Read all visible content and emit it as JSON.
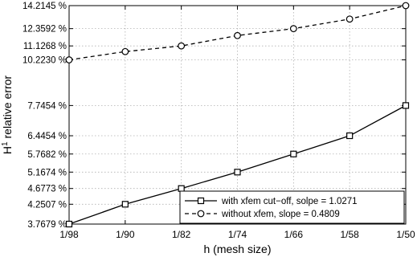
{
  "chart_data": {
    "type": "line",
    "xlabel": "h (mesh size)",
    "ylabel_main": "H",
    "ylabel_sup": "1",
    "ylabel_rest": " relative error",
    "x": [
      98,
      90,
      82,
      74,
      66,
      58,
      50
    ],
    "x_tick_labels": [
      "1/98",
      "1/90",
      "1/82",
      "1/74",
      "1/66",
      "1/58",
      "1/50"
    ],
    "y_scale": "log",
    "ylim": [
      3.7679,
      14.2145
    ],
    "y_ticks": [
      3.7679,
      4.2507,
      4.6773,
      5.1674,
      5.7682,
      6.4454,
      7.7454,
      10.223,
      11.1268,
      12.3592,
      14.2145
    ],
    "y_tick_labels": [
      "3.7679 %",
      "4.2507 %",
      "4.6773 %",
      "5.1674 %",
      "5.7682 %",
      "6.4454 %",
      "7.7454 %",
      "10.2230 %",
      "11.1268 %",
      "12.3592 %",
      "14.2145 %"
    ],
    "grid": true,
    "legend_position": "bottom-right",
    "series": [
      {
        "name": "with xfem cut−off, solpe = 1.0271",
        "marker": "square",
        "line_style": "solid",
        "values": [
          3.7679,
          4.2507,
          4.6773,
          5.1674,
          5.7682,
          6.4454,
          7.7454
        ]
      },
      {
        "name": "without xfem, slope = 0.4809",
        "marker": "circle",
        "line_style": "dashed",
        "values": [
          10.223,
          10.75,
          11.1268,
          11.85,
          12.3592,
          13.1,
          14.2145
        ]
      }
    ]
  }
}
